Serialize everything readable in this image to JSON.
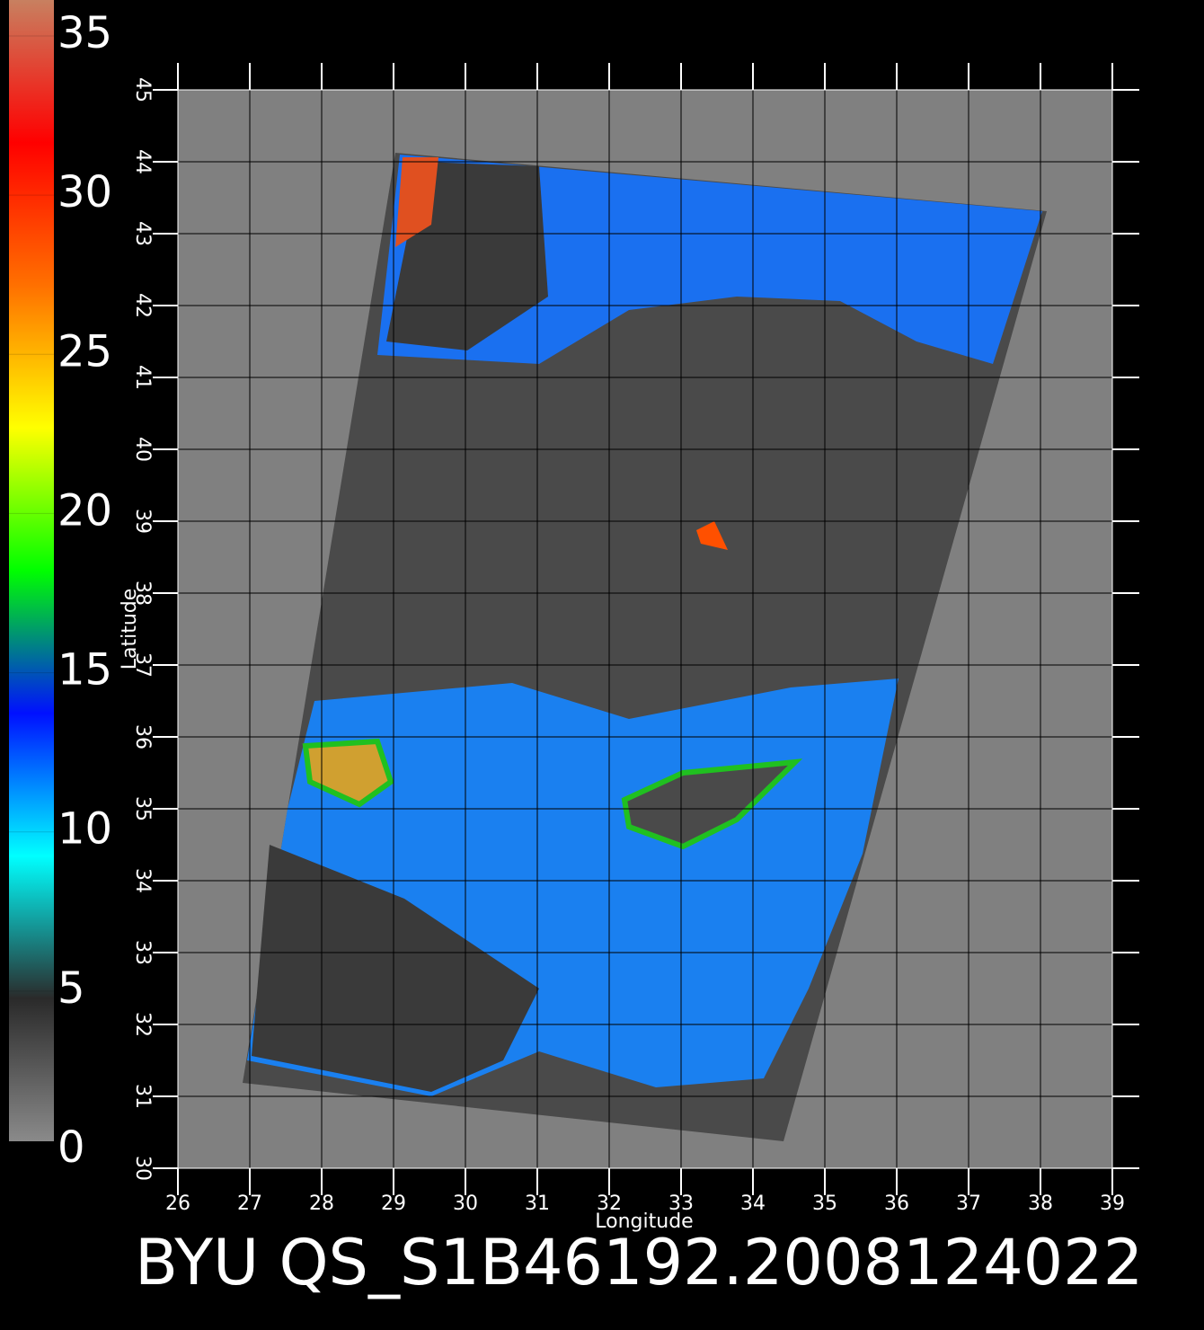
{
  "chart_data": {
    "type": "map",
    "title": "BYU QS_S1B46192.2008124022",
    "xlabel": "Longitude",
    "ylabel": "Latitude",
    "xlim": [
      26,
      39
    ],
    "xticks": [
      26,
      27,
      28,
      29,
      30,
      31,
      32,
      33,
      34,
      35,
      36,
      37,
      38,
      39
    ],
    "ylim": [
      30,
      45
    ],
    "yticks": [
      30,
      31,
      32,
      33,
      34,
      35,
      36,
      37,
      38,
      39,
      40,
      41,
      42,
      43,
      44,
      45
    ],
    "grid": true,
    "colorbar": {
      "lim": [
        0,
        35
      ],
      "ticks": [
        0,
        5,
        10,
        15,
        20,
        25,
        30,
        35
      ],
      "colors": [
        "#8a8a8a",
        "#2a2a2a",
        "#00ffff",
        "#0010ff",
        "#00ff00",
        "#ffff00",
        "#ff7000",
        "#ff0000",
        "#c88060"
      ]
    }
  }
}
